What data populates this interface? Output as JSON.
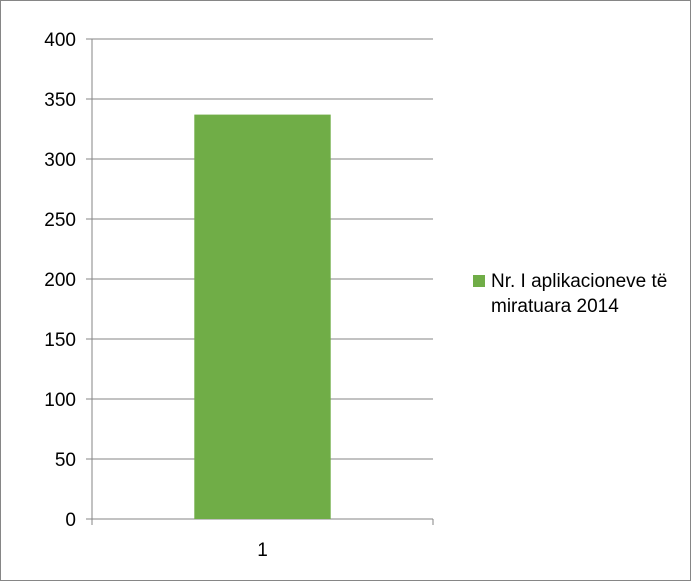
{
  "chart_data": {
    "type": "bar",
    "categories": [
      "1"
    ],
    "series": [
      {
        "name": "Nr. I aplikacioneve të miratuara 2014",
        "values": [
          337
        ],
        "color": "#70ad47"
      }
    ],
    "ylim": [
      0,
      400
    ],
    "yticks": [
      0,
      50,
      100,
      150,
      200,
      250,
      300,
      350,
      400
    ],
    "grid": true,
    "legend_position": "right",
    "gridline_color": "#868686"
  }
}
